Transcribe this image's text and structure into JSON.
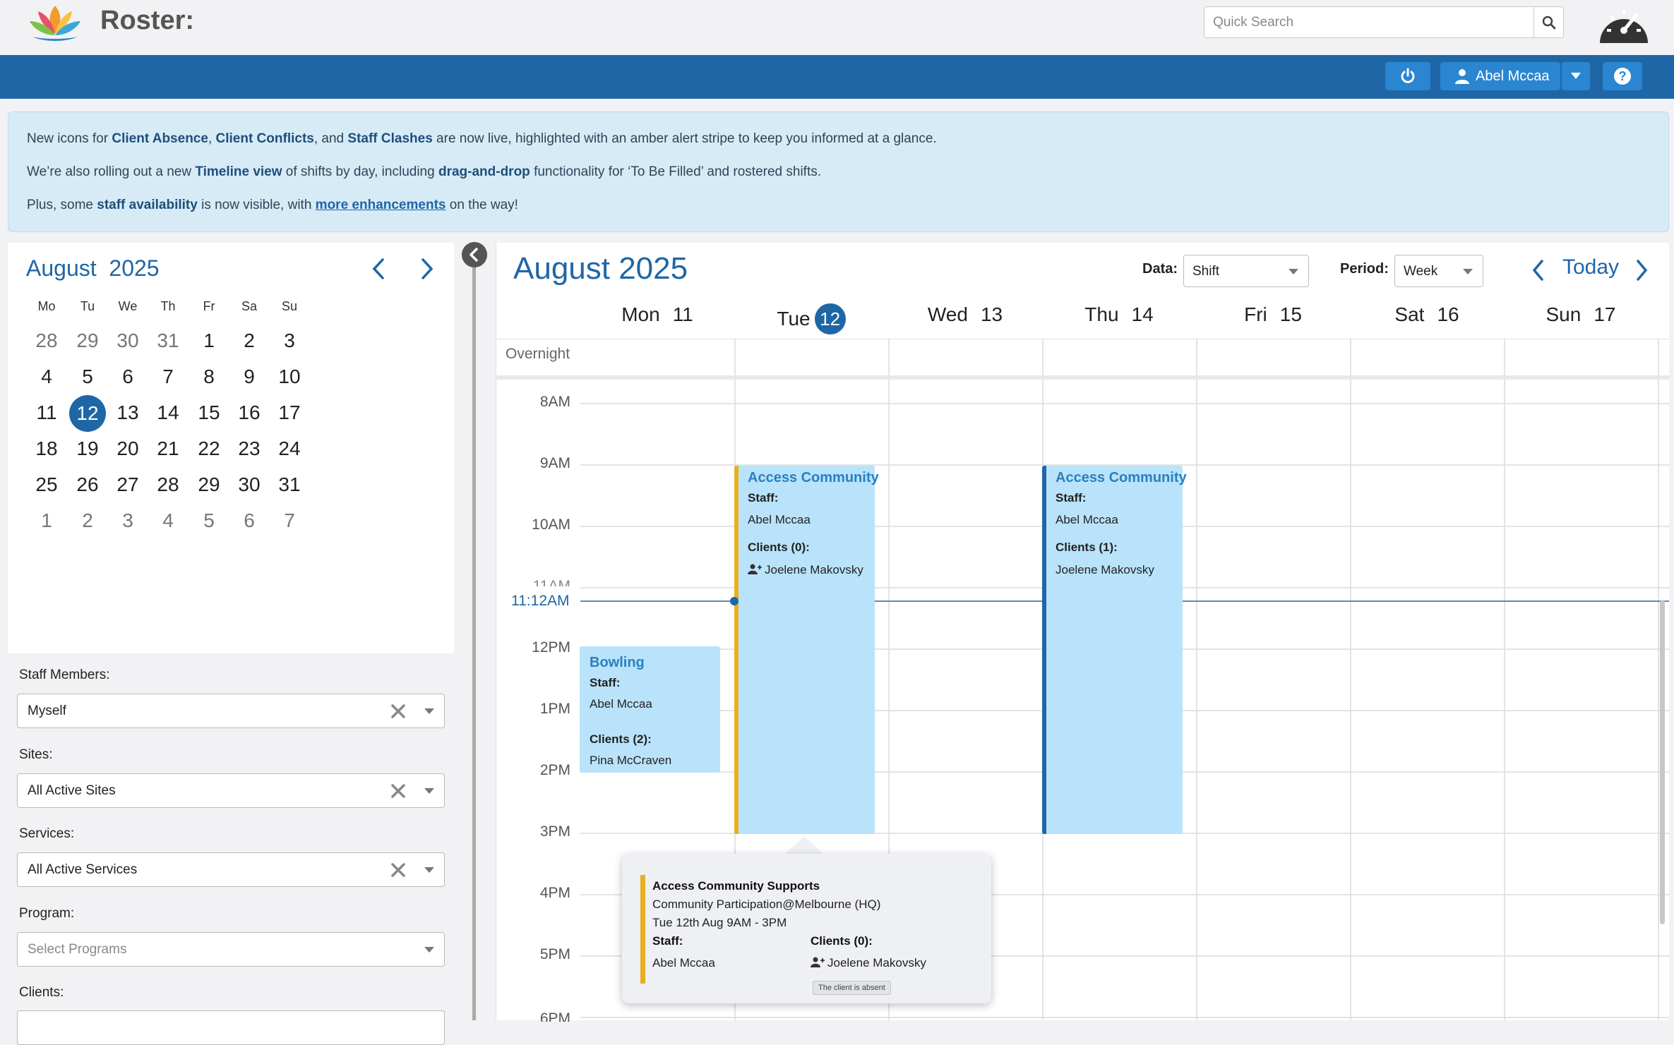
{
  "header": {
    "app_title": "Roster:",
    "search_placeholder": "Quick Search",
    "user_name": "Abel Mccaa"
  },
  "announcement": {
    "line1": [
      "New icons for ",
      "Client Absence",
      ", ",
      "Client Conflicts",
      ", and ",
      "Staff Clashes",
      " are now live, highlighted with an amber alert stripe to keep you informed at a glance."
    ],
    "line2": [
      "We’re also rolling out a new ",
      "Timeline view",
      " of shifts by day, including ",
      "drag-and-drop",
      " functionality for ‘To Be Filled’ and rostered shifts."
    ],
    "line3": [
      "Plus, some ",
      "staff availability",
      " is now visible, with ",
      "more enhancements",
      " on the way!"
    ]
  },
  "mini_calendar": {
    "month": "August",
    "year": "2025",
    "weekdays": [
      "Mo",
      "Tu",
      "We",
      "Th",
      "Fr",
      "Sa",
      "Su"
    ],
    "weeks": [
      [
        "28",
        "29",
        "30",
        "31",
        "1",
        "2",
        "3"
      ],
      [
        "4",
        "5",
        "6",
        "7",
        "8",
        "9",
        "10"
      ],
      [
        "11",
        "12",
        "13",
        "14",
        "15",
        "16",
        "17"
      ],
      [
        "18",
        "19",
        "20",
        "21",
        "22",
        "23",
        "24"
      ],
      [
        "25",
        "26",
        "27",
        "28",
        "29",
        "30",
        "31"
      ],
      [
        "1",
        "2",
        "3",
        "4",
        "5",
        "6",
        "7"
      ]
    ],
    "today": "12"
  },
  "filters": {
    "staff_label": "Staff Members:",
    "staff_value": "Myself",
    "sites_label": "Sites:",
    "sites_value": "All Active Sites",
    "services_label": "Services:",
    "services_value": "All Active Services",
    "program_label": "Program:",
    "program_placeholder": "Select Programs",
    "clients_label": "Clients:"
  },
  "main": {
    "title": "August 2025",
    "data_label": "Data:",
    "data_value": "Shift",
    "period_label": "Period:",
    "period_value": "Week",
    "today_label": "Today",
    "days": [
      {
        "name": "Mon",
        "num": "11"
      },
      {
        "name": "Tue",
        "num": "12",
        "today": true
      },
      {
        "name": "Wed",
        "num": "13"
      },
      {
        "name": "Thu",
        "num": "14"
      },
      {
        "name": "Fri",
        "num": "15"
      },
      {
        "name": "Sat",
        "num": "16"
      },
      {
        "name": "Sun",
        "num": "17"
      }
    ],
    "overnight_label": "Overnight",
    "time_labels": [
      "8AM",
      "9AM",
      "10AM",
      "11AM",
      "12PM",
      "1PM",
      "2PM",
      "3PM",
      "4PM",
      "5PM",
      "6PM"
    ],
    "now_label": "11:12AM"
  },
  "events": {
    "tue": {
      "title": "Access Community",
      "staff_label": "Staff:",
      "staff": "Abel Mccaa",
      "clients_label": "Clients (0):",
      "client": "Joelene Makovsky",
      "stripe": "#e8b020"
    },
    "thu": {
      "title": "Access Community",
      "staff_label": "Staff:",
      "staff": "Abel Mccaa",
      "clients_label": "Clients (1):",
      "client": "Joelene Makovsky",
      "stripe": "#1f66a6"
    },
    "mon": {
      "title": "Bowling",
      "staff_label": "Staff:",
      "staff": "Abel Mccaa",
      "clients_label": "Clients (2):",
      "client": "Pina McCraven"
    }
  },
  "popover": {
    "title": "Access Community Supports",
    "location": "Community Participation@Melbourne (HQ)",
    "when": "Tue 12th Aug 9AM - 3PM",
    "staff_label": "Staff:",
    "staff": "Abel Mccaa",
    "clients_label": "Clients (0):",
    "client": "Joelene Makovsky",
    "tooltip": "The client is absent"
  },
  "colors": {
    "brand_blue": "#1f66a6",
    "button_blue": "#2a86d0",
    "event_bg": "#b9e3fa",
    "amber": "#e8b020"
  }
}
